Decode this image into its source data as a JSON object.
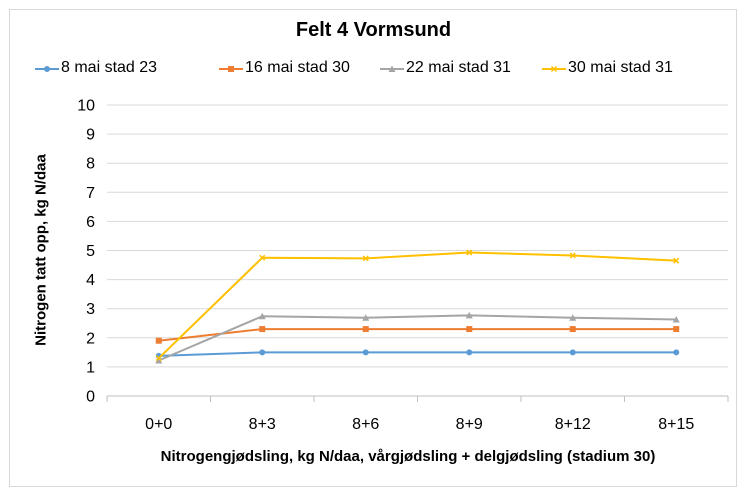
{
  "chart_data": {
    "type": "line",
    "title": "Felt 4 Vormsund",
    "xlabel": "Nitrogengjødsling, kg N/daa, vårgjødsling + delgjødsling (stadium 30)",
    "ylabel": "Nitrogen tatt opp, kg N/daa",
    "categories": [
      "0+0",
      "8+3",
      "8+6",
      "8+9",
      "8+12",
      "8+15"
    ],
    "ylim": [
      0,
      10
    ],
    "yticks": [
      0,
      1,
      2,
      3,
      4,
      5,
      6,
      7,
      8,
      9,
      10
    ],
    "grid": true,
    "legend_position": "top",
    "series": [
      {
        "name": "8 mai stad 23",
        "color": "#5b9bd5",
        "marker": "circle",
        "values": [
          1.38,
          1.5,
          1.5,
          1.5,
          1.5,
          1.5
        ]
      },
      {
        "name": "16 mai stad 30",
        "color": "#ed7d31",
        "marker": "square",
        "values": [
          1.9,
          2.3,
          2.3,
          2.3,
          2.3,
          2.3
        ]
      },
      {
        "name": "22 mai stad 31",
        "color": "#a5a5a5",
        "marker": "triangle",
        "values": [
          1.22,
          2.74,
          2.69,
          2.77,
          2.69,
          2.63
        ]
      },
      {
        "name": "30 mai stad 31",
        "color": "#ffc000",
        "marker": "x",
        "values": [
          1.3,
          4.75,
          4.73,
          4.93,
          4.83,
          4.65
        ]
      }
    ]
  }
}
